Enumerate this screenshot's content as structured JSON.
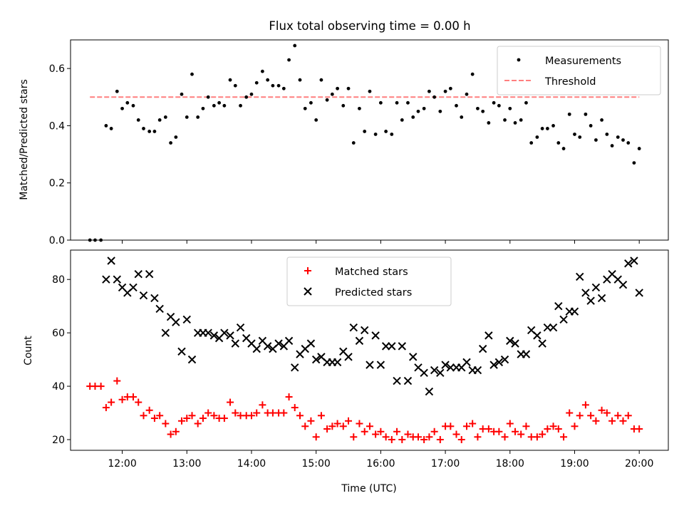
{
  "title": "Flux total observing time = 0.00 h",
  "colors": {
    "measurement": "#000000",
    "threshold": "#ff7f7f",
    "matched": "#ff0000",
    "predicted": "#000000",
    "axis": "#000000",
    "background": "#ffffff"
  },
  "chart_data": [
    {
      "type": "scatter",
      "title": "Flux total observing time = 0.00 h",
      "xlabel": "",
      "ylabel": "Matched/Predicted stars",
      "xlim": [
        11.2,
        20.45
      ],
      "ylim": [
        0.0,
        0.7
      ],
      "yticks": [
        0.0,
        0.2,
        0.4,
        0.6
      ],
      "ytick_labels": [
        "0.0",
        "0.2",
        "0.4",
        "0.6"
      ],
      "legend_position": "top-right",
      "threshold": {
        "name": "Threshold",
        "value": 0.5,
        "x_range": [
          11.5,
          20.0
        ]
      },
      "series": [
        {
          "name": "Measurements",
          "marker": "dot",
          "x": [
            11.5,
            11.58,
            11.67,
            11.75,
            11.83,
            11.92,
            12.0,
            12.08,
            12.17,
            12.25,
            12.33,
            12.42,
            12.5,
            12.58,
            12.67,
            12.75,
            12.83,
            12.92,
            13.0,
            13.08,
            13.17,
            13.25,
            13.33,
            13.42,
            13.5,
            13.58,
            13.67,
            13.75,
            13.83,
            13.92,
            14.0,
            14.08,
            14.17,
            14.25,
            14.33,
            14.42,
            14.5,
            14.58,
            14.67,
            14.75,
            14.83,
            14.92,
            15.0,
            15.08,
            15.17,
            15.25,
            15.33,
            15.42,
            15.5,
            15.58,
            15.67,
            15.75,
            15.83,
            15.92,
            16.0,
            16.08,
            16.17,
            16.25,
            16.33,
            16.42,
            16.5,
            16.58,
            16.67,
            16.75,
            16.83,
            16.92,
            17.0,
            17.08,
            17.17,
            17.25,
            17.33,
            17.42,
            17.5,
            17.58,
            17.67,
            17.75,
            17.83,
            17.92,
            18.0,
            18.08,
            18.17,
            18.25,
            18.33,
            18.42,
            18.5,
            18.58,
            18.67,
            18.75,
            18.83,
            18.92,
            19.0,
            19.08,
            19.17,
            19.25,
            19.33,
            19.42,
            19.5,
            19.58,
            19.67,
            19.75,
            19.83,
            19.92,
            20.0
          ],
          "y": [
            0.0,
            0.0,
            0.0,
            0.4,
            0.39,
            0.52,
            0.46,
            0.48,
            0.47,
            0.42,
            0.39,
            0.38,
            0.38,
            0.42,
            0.43,
            0.34,
            0.36,
            0.51,
            0.43,
            0.58,
            0.43,
            0.46,
            0.5,
            0.47,
            0.48,
            0.47,
            0.56,
            0.54,
            0.47,
            0.5,
            0.51,
            0.55,
            0.59,
            0.56,
            0.54,
            0.54,
            0.53,
            0.63,
            0.68,
            0.56,
            0.46,
            0.48,
            0.42,
            0.56,
            0.49,
            0.51,
            0.53,
            0.47,
            0.53,
            0.34,
            0.46,
            0.38,
            0.52,
            0.37,
            0.48,
            0.38,
            0.37,
            0.48,
            0.42,
            0.48,
            0.43,
            0.45,
            0.46,
            0.52,
            0.5,
            0.45,
            0.52,
            0.53,
            0.47,
            0.43,
            0.51,
            0.58,
            0.46,
            0.45,
            0.41,
            0.48,
            0.47,
            0.42,
            0.46,
            0.41,
            0.42,
            0.48,
            0.34,
            0.36,
            0.39,
            0.39,
            0.4,
            0.34,
            0.32,
            0.44,
            0.37,
            0.36,
            0.44,
            0.4,
            0.35,
            0.42,
            0.37,
            0.33,
            0.36,
            0.35,
            0.34,
            0.27,
            0.32
          ]
        }
      ]
    },
    {
      "type": "scatter",
      "title": "",
      "xlabel": "Time (UTC)",
      "ylabel": "Count",
      "xlim": [
        11.2,
        20.45
      ],
      "ylim": [
        16,
        91
      ],
      "yticks": [
        20,
        40,
        60,
        80
      ],
      "ytick_labels": [
        "20",
        "40",
        "60",
        "80"
      ],
      "xticks": [
        12,
        13,
        14,
        15,
        16,
        17,
        18,
        19,
        20
      ],
      "xtick_labels": [
        "12:00",
        "13:00",
        "14:00",
        "15:00",
        "16:00",
        "17:00",
        "18:00",
        "19:00",
        "20:00"
      ],
      "legend_position": "top-center",
      "series": [
        {
          "name": "Matched stars",
          "marker": "plus",
          "x": [
            11.5,
            11.58,
            11.67,
            11.75,
            11.83,
            11.92,
            12.0,
            12.08,
            12.17,
            12.25,
            12.33,
            12.42,
            12.5,
            12.58,
            12.67,
            12.75,
            12.83,
            12.92,
            13.0,
            13.08,
            13.17,
            13.25,
            13.33,
            13.42,
            13.5,
            13.58,
            13.67,
            13.75,
            13.83,
            13.92,
            14.0,
            14.08,
            14.17,
            14.25,
            14.33,
            14.42,
            14.5,
            14.58,
            14.67,
            14.75,
            14.83,
            14.92,
            15.0,
            15.08,
            15.17,
            15.25,
            15.33,
            15.42,
            15.5,
            15.58,
            15.67,
            15.75,
            15.83,
            15.92,
            16.0,
            16.08,
            16.17,
            16.25,
            16.33,
            16.42,
            16.5,
            16.58,
            16.67,
            16.75,
            16.83,
            16.92,
            17.0,
            17.08,
            17.17,
            17.25,
            17.33,
            17.42,
            17.5,
            17.58,
            17.67,
            17.75,
            17.83,
            17.92,
            18.0,
            18.08,
            18.17,
            18.25,
            18.33,
            18.42,
            18.5,
            18.58,
            18.67,
            18.75,
            18.83,
            18.92,
            19.0,
            19.08,
            19.17,
            19.25,
            19.33,
            19.42,
            19.5,
            19.58,
            19.67,
            19.75,
            19.83,
            19.92,
            20.0
          ],
          "y": [
            40,
            40,
            40,
            32,
            34,
            42,
            35,
            36,
            36,
            34,
            29,
            31,
            28,
            29,
            26,
            22,
            23,
            27,
            28,
            29,
            26,
            28,
            30,
            29,
            28,
            28,
            34,
            30,
            29,
            29,
            29,
            30,
            33,
            30,
            30,
            30,
            30,
            36,
            32,
            29,
            25,
            27,
            21,
            29,
            24,
            25,
            26,
            25,
            27,
            21,
            26,
            23,
            25,
            22,
            23,
            21,
            20,
            23,
            20,
            22,
            21,
            21,
            20,
            21,
            23,
            20,
            25,
            25,
            22,
            20,
            25,
            26,
            21,
            24,
            24,
            23,
            23,
            21,
            26,
            23,
            22,
            25,
            21,
            21,
            22,
            24,
            25,
            24,
            21,
            30,
            25,
            29,
            33,
            29,
            27,
            31,
            30,
            27,
            29,
            27,
            29,
            24,
            24
          ]
        },
        {
          "name": "Predicted stars",
          "marker": "x",
          "x": [
            11.75,
            11.83,
            11.92,
            12.0,
            12.08,
            12.17,
            12.25,
            12.33,
            12.42,
            12.5,
            12.58,
            12.67,
            12.75,
            12.83,
            12.92,
            13.0,
            13.08,
            13.17,
            13.25,
            13.33,
            13.42,
            13.5,
            13.58,
            13.67,
            13.75,
            13.83,
            13.92,
            14.0,
            14.08,
            14.17,
            14.25,
            14.33,
            14.42,
            14.5,
            14.58,
            14.67,
            14.75,
            14.83,
            14.92,
            15.0,
            15.08,
            15.17,
            15.25,
            15.33,
            15.42,
            15.5,
            15.58,
            15.67,
            15.75,
            15.83,
            15.92,
            16.0,
            16.08,
            16.17,
            16.25,
            16.33,
            16.42,
            16.5,
            16.58,
            16.67,
            16.75,
            16.83,
            16.92,
            17.0,
            17.08,
            17.17,
            17.25,
            17.33,
            17.42,
            17.5,
            17.58,
            17.67,
            17.75,
            17.83,
            17.92,
            18.0,
            18.08,
            18.17,
            18.25,
            18.33,
            18.42,
            18.5,
            18.58,
            18.67,
            18.75,
            18.83,
            18.92,
            19.0,
            19.08,
            19.17,
            19.25,
            19.33,
            19.42,
            19.5,
            19.58,
            19.67,
            19.75,
            19.83,
            19.92,
            20.0
          ],
          "y": [
            80,
            87,
            80,
            77,
            75,
            77,
            82,
            74,
            82,
            73,
            69,
            60,
            66,
            64,
            53,
            65,
            50,
            60,
            60,
            60,
            59,
            58,
            60,
            59,
            56,
            62,
            58,
            56,
            54,
            57,
            55,
            54,
            56,
            55,
            57,
            47,
            52,
            54,
            56,
            50,
            51,
            49,
            49,
            49,
            53,
            51,
            62,
            57,
            61,
            48,
            59,
            48,
            55,
            55,
            42,
            55,
            42,
            51,
            47,
            45,
            38,
            46,
            45,
            48,
            47,
            47,
            47,
            49,
            46,
            46,
            54,
            59,
            48,
            49,
            50,
            57,
            56,
            52,
            52,
            61,
            59,
            56,
            62,
            62,
            70,
            65,
            68,
            68,
            81,
            75,
            72,
            77,
            73,
            80,
            82,
            80,
            78,
            86,
            87,
            75
          ]
        }
      ]
    }
  ]
}
